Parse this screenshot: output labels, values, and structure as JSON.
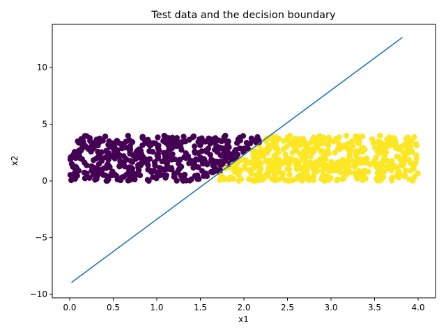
{
  "chart_data": {
    "type": "scatter",
    "title": "Test data and the decision boundary",
    "xlabel": "x1",
    "ylabel": "x2",
    "xlim": [
      -0.2,
      4.2
    ],
    "ylim": [
      -10.3,
      13.8
    ],
    "xticks": [
      0.0,
      0.5,
      1.0,
      1.5,
      2.0,
      2.5,
      3.0,
      3.5,
      4.0
    ],
    "xtick_labels": [
      "0.0",
      "0.5",
      "1.0",
      "1.5",
      "2.0",
      "2.5",
      "3.0",
      "3.5",
      "4.0"
    ],
    "yticks": [
      -10,
      -5,
      0,
      5,
      10
    ],
    "ytick_labels": [
      "−10",
      "−5",
      "0",
      "5",
      "10"
    ],
    "grid": false,
    "legend": "none",
    "colors": {
      "class_0": "#440154",
      "class_1": "#fde725",
      "boundary": "#1f77b4"
    },
    "decision_boundary": {
      "x": [
        0.02,
        3.82
      ],
      "y": [
        -8.95,
        12.65
      ]
    },
    "points": {
      "x_range": [
        0.0,
        4.0
      ],
      "y_range": [
        0.0,
        4.0
      ],
      "count": 1000,
      "rule": "class_0 above boundary line, class_1 below"
    }
  }
}
